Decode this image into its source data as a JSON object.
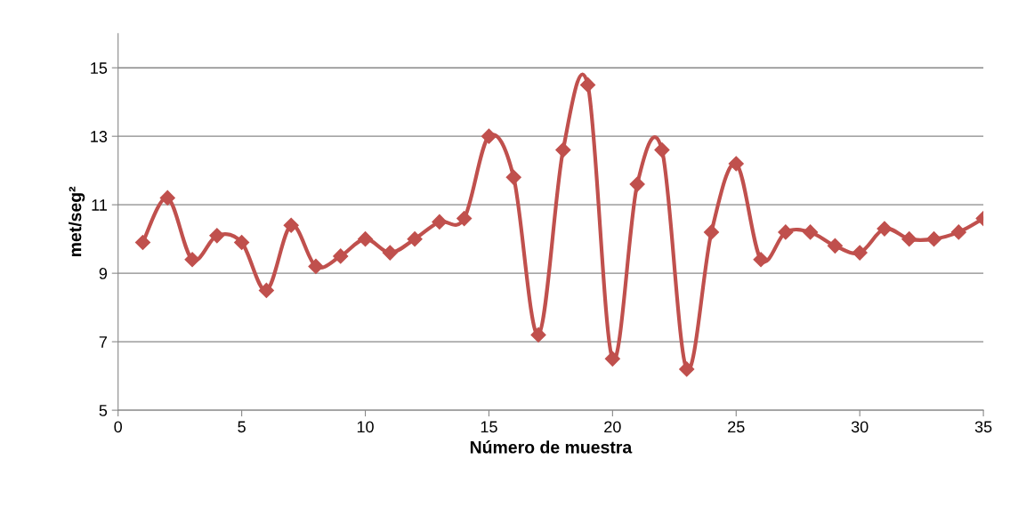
{
  "chart_data": {
    "type": "line",
    "xlabel": "Número de muestra",
    "ylabel": "met/seg²",
    "x": [
      1,
      2,
      3,
      4,
      5,
      6,
      7,
      8,
      9,
      10,
      11,
      12,
      13,
      14,
      15,
      16,
      17,
      18,
      19,
      20,
      21,
      22,
      23,
      24,
      25,
      26,
      27,
      28,
      29,
      30,
      31,
      32,
      33,
      34,
      35
    ],
    "series": [
      {
        "color": "#c0504d",
        "values": [
          9.9,
          11.2,
          9.4,
          10.1,
          9.9,
          8.5,
          10.4,
          9.2,
          9.5,
          10.0,
          9.6,
          10.0,
          10.5,
          10.6,
          13.0,
          11.8,
          7.2,
          12.6,
          14.5,
          6.5,
          11.6,
          12.6,
          6.2,
          10.2,
          12.2,
          9.4,
          10.2,
          10.2,
          9.8,
          9.6,
          10.3,
          10.0,
          10.0,
          10.2,
          10.6
        ]
      }
    ],
    "xlim": [
      0,
      35
    ],
    "xticks": [
      0,
      5,
      10,
      15,
      20,
      25,
      30,
      35
    ],
    "ylim": [
      5,
      16
    ],
    "yticks": [
      5,
      7,
      9,
      11,
      13,
      15
    ],
    "grid": "y",
    "marker": "diamond",
    "line_style": "solid",
    "legend": false
  }
}
